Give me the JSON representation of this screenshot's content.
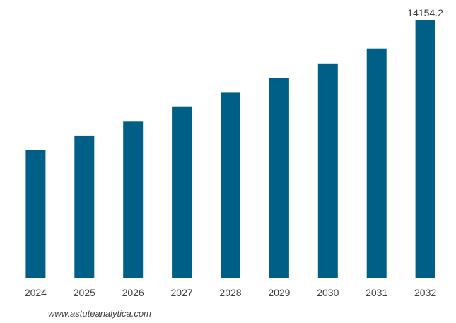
{
  "chart_data": {
    "type": "bar",
    "categories": [
      "2024",
      "2025",
      "2026",
      "2027",
      "2028",
      "2029",
      "2030",
      "2031",
      "2032"
    ],
    "values": [
      7040,
      7820,
      8620,
      9420,
      10210,
      11000,
      11790,
      12610,
      14154.2
    ],
    "data_labels": [
      "",
      "",
      "",
      "",
      "",
      "",
      "",
      "",
      "14154.2"
    ],
    "ylim": [
      0,
      14154.2
    ],
    "grid": false,
    "colors": {
      "bar": "#005f87",
      "axis": "#d9d9d9"
    }
  },
  "watermark": "www.astuteanalytica.com"
}
